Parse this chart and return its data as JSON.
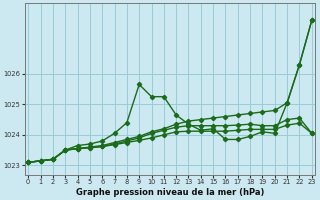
{
  "title": "Graphe pression niveau de la mer (hPa)",
  "bg_color": "#cce8f0",
  "grid_color": "#99ccd8",
  "line_color": "#1a6b1a",
  "x_values": [
    0,
    1,
    2,
    3,
    4,
    5,
    6,
    7,
    8,
    9,
    10,
    11,
    12,
    13,
    14,
    15,
    16,
    17,
    18,
    19,
    20,
    21,
    22,
    23
  ],
  "series": [
    [
      1023.1,
      1023.15,
      1023.2,
      1023.5,
      1023.65,
      1023.7,
      1023.8,
      1024.05,
      1024.4,
      1025.65,
      1025.25,
      1025.25,
      1024.65,
      1024.35,
      1024.15,
      1024.2,
      1023.85,
      1023.85,
      1023.95,
      1024.1,
      1024.05,
      1025.05,
      1026.3,
      1027.75
    ],
    [
      1023.1,
      1023.15,
      1023.2,
      1023.5,
      1023.55,
      1023.6,
      1023.65,
      1023.75,
      1023.85,
      1023.95,
      1024.1,
      1024.2,
      1024.35,
      1024.45,
      1024.5,
      1024.55,
      1024.6,
      1024.65,
      1024.7,
      1024.75,
      1024.8,
      1025.05,
      1026.3,
      1027.75
    ],
    [
      1023.1,
      1023.15,
      1023.2,
      1023.5,
      1023.55,
      1023.58,
      1023.62,
      1023.7,
      1023.8,
      1023.9,
      1024.05,
      1024.15,
      1024.25,
      1024.3,
      1024.3,
      1024.3,
      1024.3,
      1024.32,
      1024.35,
      1024.3,
      1024.3,
      1024.5,
      1024.55,
      1024.05
    ],
    [
      1023.1,
      1023.15,
      1023.2,
      1023.5,
      1023.55,
      1023.58,
      1023.62,
      1023.68,
      1023.75,
      1023.82,
      1023.9,
      1024.0,
      1024.1,
      1024.12,
      1024.12,
      1024.12,
      1024.12,
      1024.15,
      1024.18,
      1024.18,
      1024.18,
      1024.32,
      1024.38,
      1024.05
    ]
  ],
  "ylim": [
    1022.7,
    1028.3
  ],
  "yticks": [
    1023,
    1024,
    1025,
    1026
  ],
  "ytick_labels": [
    "1023",
    "1024",
    "1025",
    "1026"
  ],
  "xlim": [
    -0.3,
    23.3
  ],
  "xticks": [
    0,
    1,
    2,
    3,
    4,
    5,
    6,
    7,
    8,
    9,
    10,
    11,
    12,
    13,
    14,
    15,
    16,
    17,
    18,
    19,
    20,
    21,
    22,
    23
  ],
  "marker": "D",
  "marker_size": 2.2,
  "line_width": 1.0,
  "title_fontsize": 6.0,
  "tick_fontsize": 4.8,
  "figsize": [
    3.2,
    2.0
  ],
  "dpi": 100
}
